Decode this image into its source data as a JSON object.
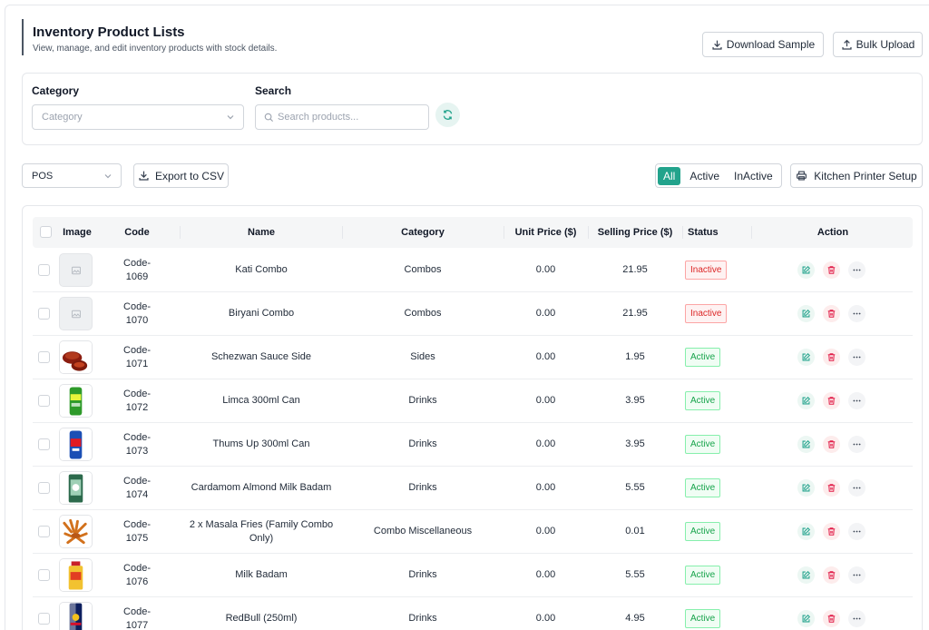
{
  "header": {
    "title": "Inventory Product Lists",
    "subtitle": "View, manage, and edit inventory products with stock details.",
    "download_sample": "Download Sample",
    "bulk_upload": "Bulk Upload"
  },
  "filters": {
    "category_label": "Category",
    "category_placeholder": "Category",
    "search_label": "Search",
    "search_placeholder": "Search products..."
  },
  "toolbar": {
    "channel_value": "POS",
    "export_label": "Export to CSV",
    "segments": [
      "All",
      "Active",
      "InActive"
    ],
    "selected_segment": "All",
    "printer_label": "Kitchen Printer Setup"
  },
  "table": {
    "headers": [
      "Image",
      "Code",
      "Name",
      "Category",
      "Unit Price ($)",
      "Selling Price ($)",
      "Status",
      "Action"
    ],
    "rows": [
      {
        "code": "Code-1069",
        "name": "Kati Combo",
        "category": "Combos",
        "unit_price": "0.00",
        "selling_price": "21.95",
        "status": "Inactive",
        "image": "placeholder-image-icon"
      },
      {
        "code": "Code-1070",
        "name": "Biryani Combo",
        "category": "Combos",
        "unit_price": "0.00",
        "selling_price": "21.95",
        "status": "Inactive",
        "image": "placeholder-image-icon"
      },
      {
        "code": "Code-1071",
        "name": "Schezwan Sauce Side",
        "category": "Sides",
        "unit_price": "0.00",
        "selling_price": "1.95",
        "status": "Active",
        "image": "sauce-bowl"
      },
      {
        "code": "Code-1072",
        "name": "Limca 300ml Can",
        "category": "Drinks",
        "unit_price": "0.00",
        "selling_price": "3.95",
        "status": "Active",
        "image": "green-can"
      },
      {
        "code": "Code-1073",
        "name": "Thums Up 300ml Can",
        "category": "Drinks",
        "unit_price": "0.00",
        "selling_price": "3.95",
        "status": "Active",
        "image": "blue-can"
      },
      {
        "code": "Code-1074",
        "name": "Cardamom Almond Milk Badam",
        "category": "Drinks",
        "unit_price": "0.00",
        "selling_price": "5.55",
        "status": "Active",
        "image": "green-bottle"
      },
      {
        "code": "Code-1075",
        "name": "2 x Masala Fries (Family Combo Only)",
        "category": "Combo Miscellaneous",
        "unit_price": "0.00",
        "selling_price": "0.01",
        "status": "Active",
        "image": "fries"
      },
      {
        "code": "Code-1076",
        "name": "Milk Badam",
        "category": "Drinks",
        "unit_price": "0.00",
        "selling_price": "5.55",
        "status": "Active",
        "image": "yellow-bottle"
      },
      {
        "code": "Code-1077",
        "name": "RedBull (250ml)",
        "category": "Drinks",
        "unit_price": "0.00",
        "selling_price": "4.95",
        "status": "Active",
        "image": "redbull-can"
      }
    ]
  },
  "colors": {
    "accent": "#22a38c",
    "active": "#16a34a",
    "inactive": "#dc2626"
  }
}
